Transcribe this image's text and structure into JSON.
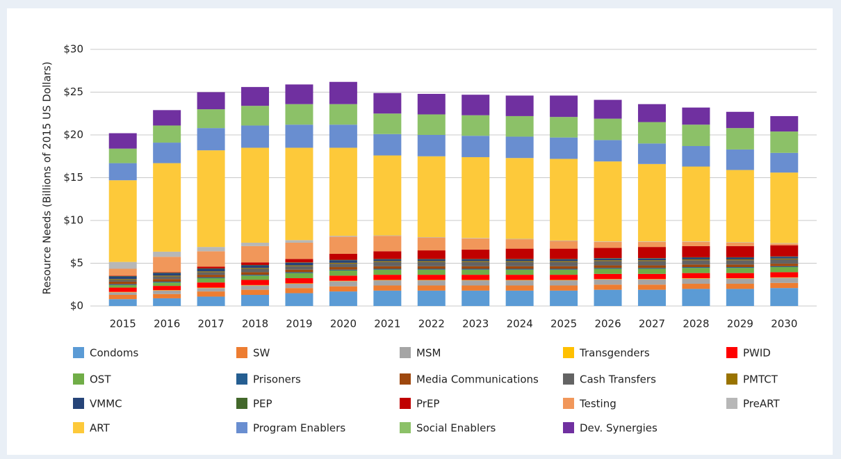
{
  "chart_data": {
    "type": "stacked_bar",
    "y_label": "Resource Needs (Billions of 2015 US Dollars)",
    "categories": [
      "2015",
      "2016",
      "2017",
      "2018",
      "2019",
      "2020",
      "2021",
      "2022",
      "2023",
      "2024",
      "2025",
      "2026",
      "2027",
      "2028",
      "2029",
      "2030"
    ],
    "ylim": [
      0,
      30
    ],
    "yticks": [
      {
        "value": 0,
        "label": "$0"
      },
      {
        "value": 5,
        "label": "$5"
      },
      {
        "value": 10,
        "label": "$10"
      },
      {
        "value": 15,
        "label": "$15"
      },
      {
        "value": 20,
        "label": "$20"
      },
      {
        "value": 25,
        "label": "$25"
      },
      {
        "value": 30,
        "label": "$30"
      }
    ],
    "grid": true,
    "series": [
      {
        "name": "Condoms",
        "color": "#5b9bd5",
        "values": [
          0.8,
          0.9,
          1.1,
          1.3,
          1.5,
          1.7,
          1.8,
          1.8,
          1.8,
          1.8,
          1.8,
          1.9,
          1.9,
          2.0,
          2.0,
          2.1
        ]
      },
      {
        "name": "SW",
        "color": "#ed7d31",
        "values": [
          0.5,
          0.5,
          0.6,
          0.6,
          0.6,
          0.6,
          0.6,
          0.6,
          0.6,
          0.6,
          0.6,
          0.6,
          0.6,
          0.6,
          0.6,
          0.6
        ]
      },
      {
        "name": "MSM",
        "color": "#a5a5a5",
        "values": [
          0.3,
          0.4,
          0.4,
          0.5,
          0.5,
          0.6,
          0.6,
          0.6,
          0.6,
          0.6,
          0.6,
          0.6,
          0.6,
          0.6,
          0.6,
          0.6
        ]
      },
      {
        "name": "Transgenders",
        "color": "#ffc000",
        "values": [
          0.05,
          0.05,
          0.05,
          0.05,
          0.05,
          0.05,
          0.05,
          0.05,
          0.05,
          0.05,
          0.05,
          0.05,
          0.05,
          0.05,
          0.05,
          0.05
        ]
      },
      {
        "name": "PWID",
        "color": "#ff0000",
        "values": [
          0.5,
          0.5,
          0.6,
          0.6,
          0.6,
          0.6,
          0.6,
          0.6,
          0.6,
          0.6,
          0.6,
          0.6,
          0.6,
          0.6,
          0.6,
          0.6
        ]
      },
      {
        "name": "OST",
        "color": "#70ad47",
        "values": [
          0.3,
          0.4,
          0.5,
          0.5,
          0.6,
          0.6,
          0.6,
          0.6,
          0.6,
          0.6,
          0.6,
          0.6,
          0.6,
          0.6,
          0.6,
          0.6
        ]
      },
      {
        "name": "Prisoners",
        "color": "#255e91",
        "values": [
          0.1,
          0.1,
          0.1,
          0.1,
          0.1,
          0.1,
          0.1,
          0.1,
          0.1,
          0.1,
          0.1,
          0.1,
          0.1,
          0.1,
          0.1,
          0.1
        ]
      },
      {
        "name": "Media Communications",
        "color": "#9e480e",
        "values": [
          0.3,
          0.3,
          0.3,
          0.3,
          0.3,
          0.3,
          0.3,
          0.3,
          0.3,
          0.3,
          0.3,
          0.3,
          0.3,
          0.3,
          0.3,
          0.3
        ]
      },
      {
        "name": "Cash Transfers",
        "color": "#636363",
        "values": [
          0.2,
          0.3,
          0.3,
          0.4,
          0.4,
          0.4,
          0.5,
          0.5,
          0.5,
          0.5,
          0.5,
          0.5,
          0.5,
          0.5,
          0.5,
          0.5
        ]
      },
      {
        "name": "PMTCT",
        "color": "#997300",
        "values": [
          0.1,
          0.1,
          0.1,
          0.1,
          0.1,
          0.1,
          0.1,
          0.1,
          0.1,
          0.1,
          0.1,
          0.1,
          0.1,
          0.1,
          0.1,
          0.1
        ]
      },
      {
        "name": "VMMC",
        "color": "#264478",
        "values": [
          0.3,
          0.3,
          0.3,
          0.3,
          0.3,
          0.3,
          0.2,
          0.2,
          0.2,
          0.2,
          0.2,
          0.2,
          0.2,
          0.2,
          0.2,
          0.2
        ]
      },
      {
        "name": "PEP",
        "color": "#43682b",
        "values": [
          0.05,
          0.05,
          0.05,
          0.05,
          0.05,
          0.05,
          0.05,
          0.05,
          0.05,
          0.05,
          0.05,
          0.05,
          0.05,
          0.05,
          0.05,
          0.05
        ]
      },
      {
        "name": "PrEP",
        "color": "#c00000",
        "values": [
          0.05,
          0.05,
          0.2,
          0.3,
          0.4,
          0.7,
          0.9,
          1.0,
          1.1,
          1.2,
          1.2,
          1.2,
          1.3,
          1.3,
          1.3,
          1.3
        ]
      },
      {
        "name": "Testing",
        "color": "#f1975a",
        "values": [
          0.8,
          1.8,
          1.8,
          1.9,
          1.9,
          2.0,
          1.8,
          1.5,
          1.3,
          1.1,
          0.9,
          0.7,
          0.6,
          0.5,
          0.4,
          0.2
        ]
      },
      {
        "name": "PreART",
        "color": "#b7b7b7",
        "values": [
          0.8,
          0.6,
          0.5,
          0.4,
          0.3,
          0.1,
          0.05,
          0.05,
          0.05,
          0.05,
          0.05,
          0.05,
          0.05,
          0.05,
          0.05,
          0.05
        ]
      },
      {
        "name": "ART",
        "color": "#fdc93a",
        "values": [
          9.55,
          10.35,
          11.3,
          11.1,
          10.8,
          10.3,
          9.35,
          9.45,
          9.45,
          9.45,
          9.55,
          9.35,
          9.05,
          8.75,
          8.45,
          8.25
        ]
      },
      {
        "name": "Program Enablers",
        "color": "#698ed0",
        "values": [
          2.0,
          2.4,
          2.6,
          2.6,
          2.7,
          2.7,
          2.5,
          2.5,
          2.5,
          2.5,
          2.5,
          2.5,
          2.4,
          2.4,
          2.4,
          2.3
        ]
      },
      {
        "name": "Social Enablers",
        "color": "#8cc168",
        "values": [
          1.7,
          2.0,
          2.2,
          2.3,
          2.4,
          2.4,
          2.4,
          2.4,
          2.4,
          2.4,
          2.4,
          2.5,
          2.5,
          2.5,
          2.5,
          2.5
        ]
      },
      {
        "name": "Dev. Synergies",
        "color": "#7030a0",
        "values": [
          1.8,
          1.8,
          2.0,
          2.2,
          2.3,
          2.6,
          2.4,
          2.4,
          2.4,
          2.4,
          2.5,
          2.2,
          2.1,
          2.0,
          1.9,
          1.8
        ]
      }
    ]
  }
}
